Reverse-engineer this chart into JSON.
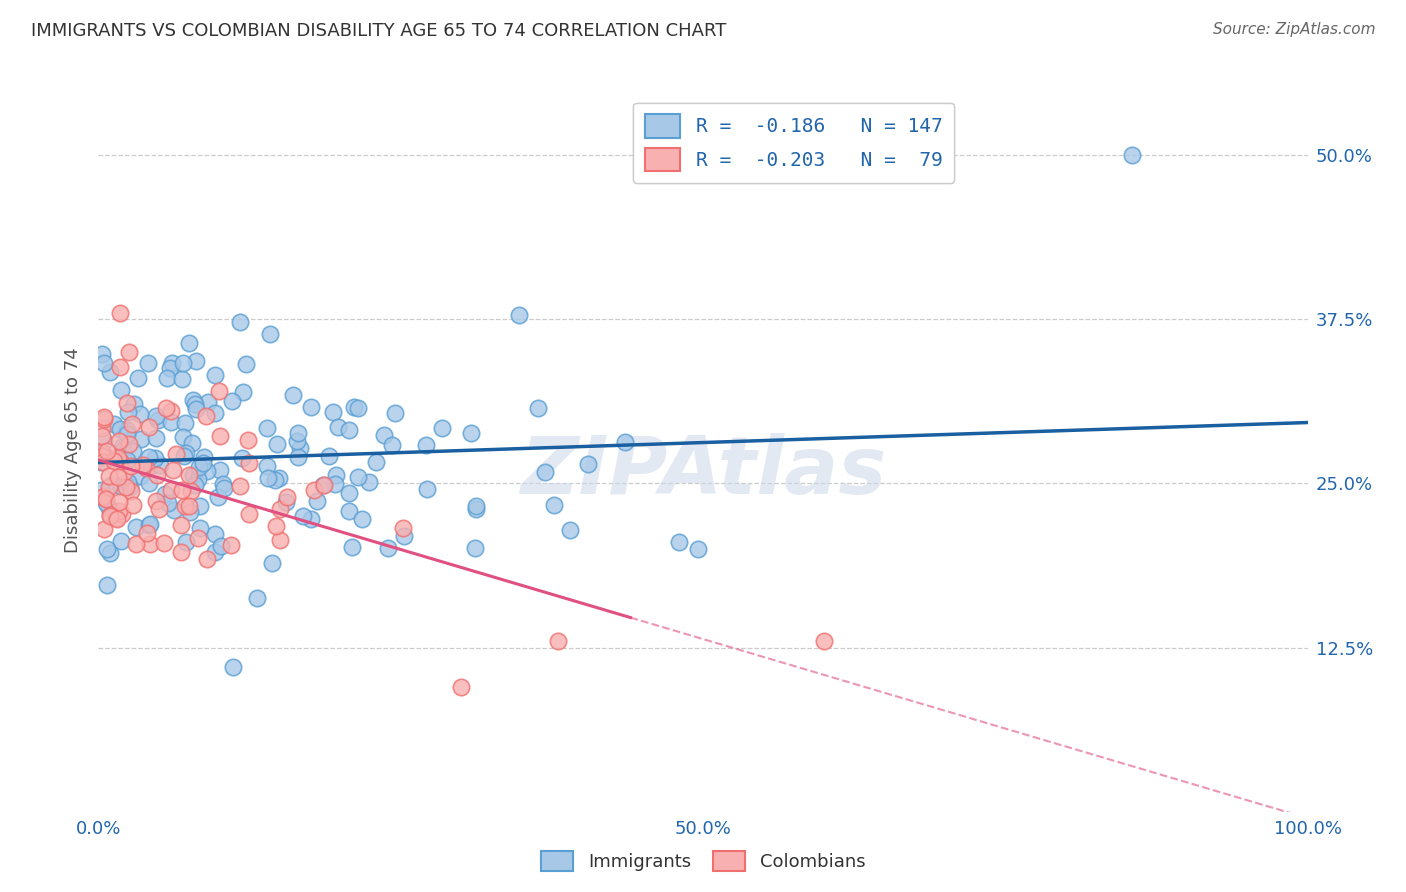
{
  "title": "IMMIGRANTS VS COLOMBIAN DISABILITY AGE 65 TO 74 CORRELATION CHART",
  "source": "Source: ZipAtlas.com",
  "ylabel": "Disability Age 65 to 74",
  "xlim": [
    0,
    1.0
  ],
  "ylim": [
    0,
    0.55
  ],
  "xtick_positions": [
    0.0,
    0.1,
    0.2,
    0.3,
    0.4,
    0.5,
    0.6,
    0.7,
    0.8,
    0.9,
    1.0
  ],
  "xtick_labels": [
    "0.0%",
    "",
    "",
    "",
    "",
    "50.0%",
    "",
    "",
    "",
    "",
    "100.0%"
  ],
  "ytick_positions": [
    0.125,
    0.25,
    0.375,
    0.5
  ],
  "ytick_labels": [
    "12.5%",
    "25.0%",
    "37.5%",
    "50.0%"
  ],
  "blue_face": "#a8c8e8",
  "blue_edge": "#5a9fd4",
  "pink_face": "#f8b0b0",
  "pink_edge": "#f07070",
  "trend_blue": "#1a5fa0",
  "trend_pink": "#e05080",
  "watermark": "ZIPAtlas",
  "legend_label1": "R =  -0.186   N = 147",
  "legend_label2": "R =  -0.203   N =  79",
  "bottom_label1": "Immigrants",
  "bottom_label2": "Colombians"
}
